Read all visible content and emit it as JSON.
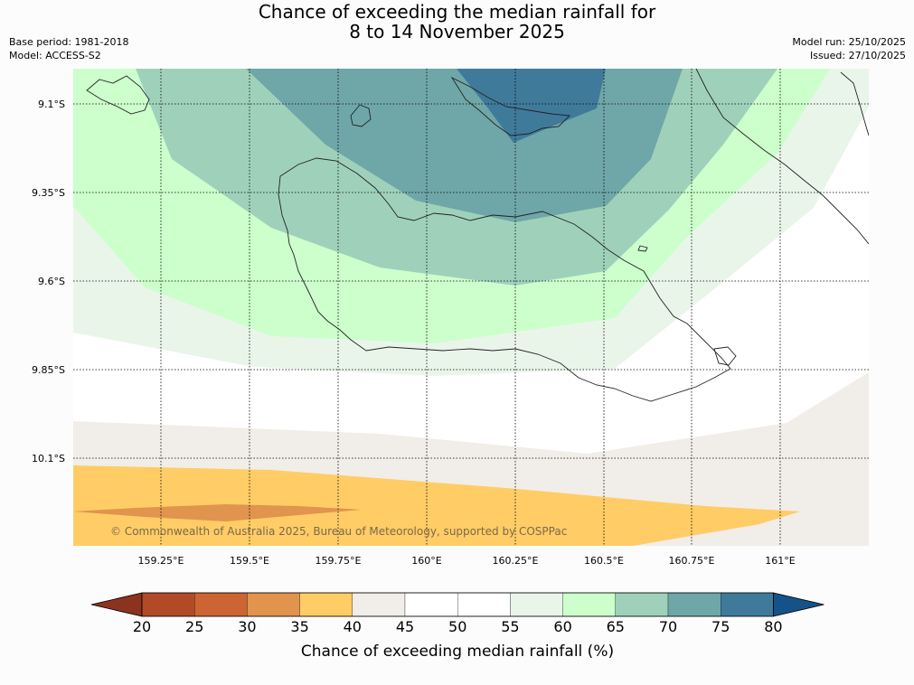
{
  "title_line1": "Chance of exceeding the median rainfall for",
  "title_line2": "8 to 14 November 2025",
  "base_period": "Base period: 1981-2018",
  "model": "Model: ACCESS-S2",
  "model_run": "Model run: 25/10/2025",
  "issued": "Issued: 27/10/2025",
  "copyright": "© Commonwealth of Australia 2025, Bureau of Meteorology, supported by COSPPac",
  "lat_labels": [
    "9.1°S",
    "9.35°S",
    "9.6°S",
    "9.85°S",
    "10.1°S"
  ],
  "lon_labels": [
    "159.25°E",
    "159.5°E",
    "159.75°E",
    "160°E",
    "160.25°E",
    "160.5°E",
    "160.75°E",
    "161°E"
  ],
  "colorbar": {
    "title": "Chance of exceeding median rainfall (%)",
    "ticks": [
      "20",
      "25",
      "30",
      "35",
      "40",
      "45",
      "50",
      "55",
      "60",
      "65",
      "70",
      "75",
      "80"
    ],
    "colors": [
      "#8c3320",
      "#b24a27",
      "#cc6533",
      "#e1944d",
      "#ffcc66",
      "#f1ede8",
      "#ffffff",
      "#ffffff",
      "#eaf5ea",
      "#ccffcc",
      "#9fd1ba",
      "#6fa7a8",
      "#3f7a9b",
      "#15528a"
    ]
  }
}
